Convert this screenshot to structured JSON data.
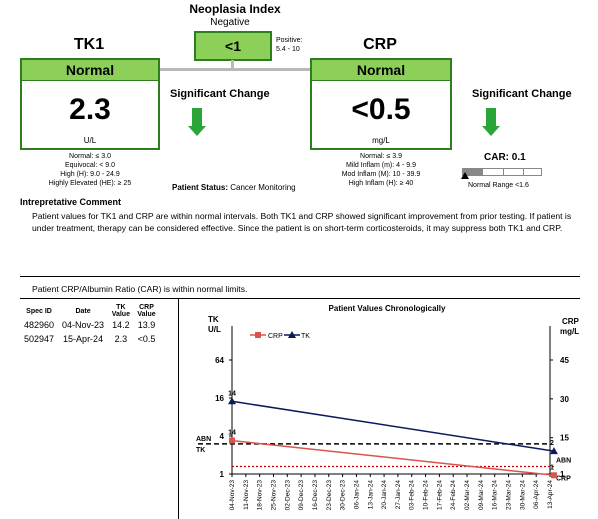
{
  "neoplasia": {
    "title": "Neoplasia Index",
    "status": "Negative",
    "value": "<1",
    "positive_label": "Positive:",
    "positive_range": "5.4 - 10"
  },
  "tk1": {
    "title": "TK1",
    "status": "Normal",
    "value": "2.3",
    "unit": "U/L",
    "ref": [
      "Normal: ≤ 3.0",
      "Equivocal: < 9.0",
      "High (H): 9.0 - 24.9",
      "Highly Elevated (HE): ≥ 25"
    ],
    "change": "Significant Change"
  },
  "crp": {
    "title": "CRP",
    "status": "Normal",
    "value": "<0.5",
    "unit": "mg/L",
    "ref": [
      "Normal: ≤ 3.9",
      "Mild Inflam (m): 4 - 9.9",
      "Mod Inflam (M): 10 - 39.9",
      "High Inflam (H): ≥ 40"
    ],
    "change": "Significant Change"
  },
  "car": {
    "label": "CAR: 0.1",
    "range_label": "Normal Range <1.6",
    "value": 0.1
  },
  "patient_status": {
    "label": "Patient Status:",
    "value": "Cancer Monitoring"
  },
  "comment": {
    "heading": "Intrepretative Comment",
    "text": "Patient values for TK1 and CRP are within normal intervals. Both TK1 and CRP showed significant improvement from prior testing.  If patient is under treatment, therapy can be considered effective.  Since the patient is on short-term corticosteroids, it may suppress both TK1 and CRP.",
    "car_note": "Patient CRP/Albumin Ratio (CAR) is within normal limits."
  },
  "results_table": {
    "headers": {
      "spec": "Spec ID",
      "date": "Date",
      "tk_1": "TK",
      "tk_2": "Value",
      "crp_1": "CRP",
      "crp_2": "Value"
    },
    "rows": [
      {
        "spec": "482960",
        "date": "04-Nov-23",
        "tk": "14.2",
        "crp": "13.9"
      },
      {
        "spec": "502947",
        "date": "15-Apr-24",
        "tk": "2.3",
        "crp": "<0.5"
      }
    ]
  },
  "chart_data": {
    "type": "line",
    "title": "Patient Values Chronologically",
    "left_axis": {
      "label_1": "TK",
      "label_2": "U/L",
      "scale": "log",
      "ticks": [
        "64",
        "16",
        "4",
        "1"
      ],
      "tick_values": [
        64,
        16,
        4,
        1
      ]
    },
    "right_axis": {
      "label_1": "CRP",
      "label_2": "mg/L",
      "ticks": [
        "45",
        "30",
        "15",
        "1"
      ],
      "tick_values": [
        45,
        30,
        15,
        1
      ]
    },
    "x_ticks": [
      "04-Nov-23",
      "11-Nov-23",
      "18-Nov-23",
      "25-Nov-23",
      "02-Dec-23",
      "09-Dec-23",
      "16-Dec-23",
      "23-Dec-23",
      "30-Dec-23",
      "06-Jan-24",
      "13-Jan-24",
      "20-Jan-24",
      "27-Jan-24",
      "03-Feb-24",
      "10-Feb-24",
      "17-Feb-24",
      "24-Feb-24",
      "02-Mar-24",
      "09-Mar-24",
      "16-Mar-24",
      "23-Mar-24",
      "30-Mar-24",
      "06-Apr-24",
      "13-Apr-24"
    ],
    "legend": {
      "crp": "CRP",
      "tk": "TK"
    },
    "series": [
      {
        "name": "TK",
        "color": "#0a1a5c",
        "points": [
          {
            "x": "04-Nov-23",
            "y": 14.2,
            "label": "14"
          },
          {
            "x": "15-Apr-24",
            "y": 2.3,
            "label": "2"
          }
        ]
      },
      {
        "name": "CRP",
        "color": "#d9534f",
        "points": [
          {
            "x": "04-Nov-23",
            "y": 13.9,
            "label": "14"
          },
          {
            "x": "15-Apr-24",
            "y": 0.5,
            "label": "1"
          }
        ]
      }
    ],
    "abn_lines": [
      {
        "label_1": "ABN",
        "label_2": "TK",
        "value": 3.0,
        "color": "#000000"
      },
      {
        "label_1": "ABN",
        "label_2": "CRP",
        "value": 3.9,
        "color": "#c00000"
      }
    ]
  }
}
